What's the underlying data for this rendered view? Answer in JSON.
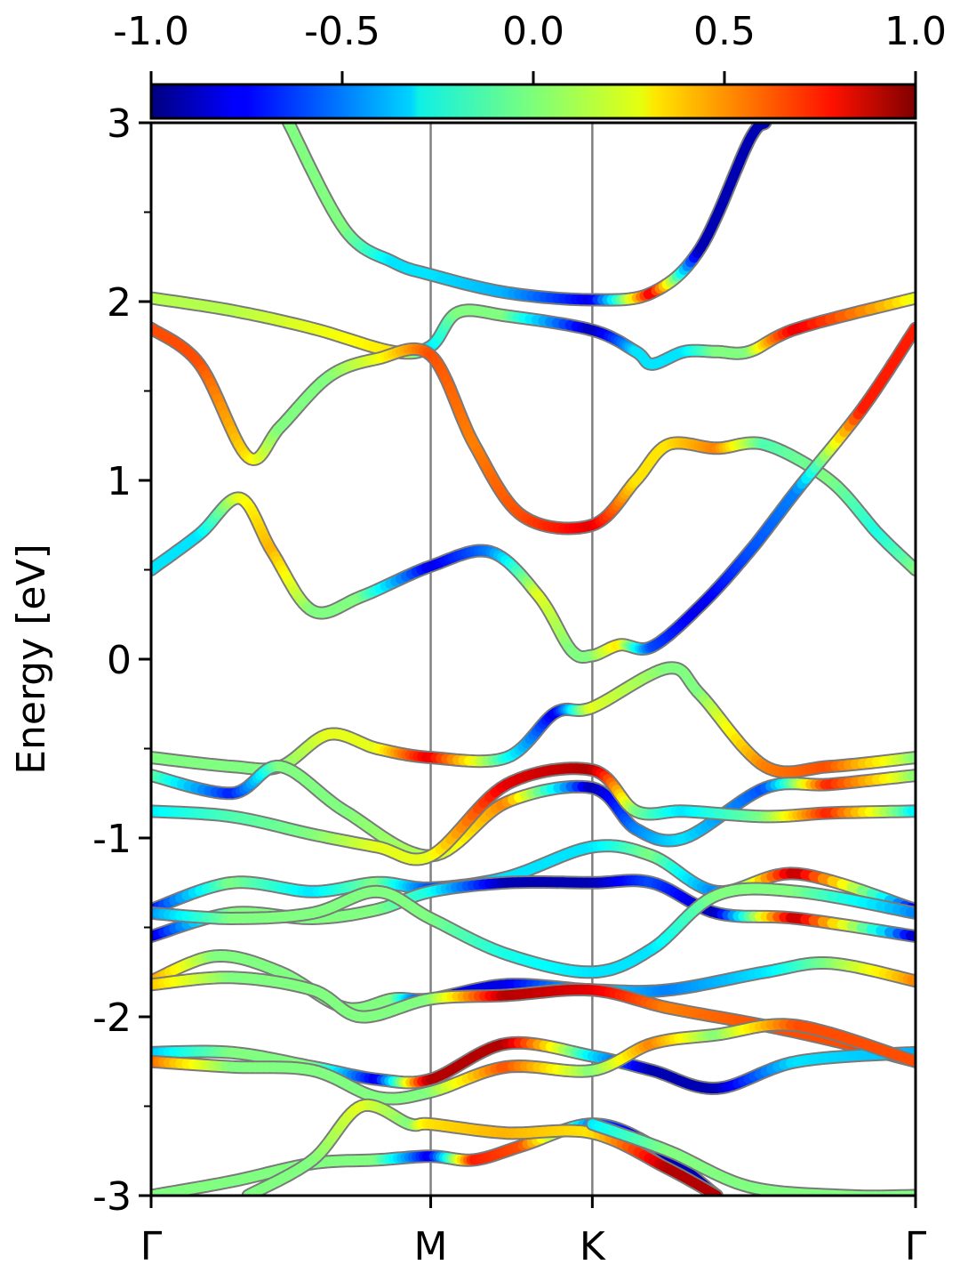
{
  "chart_data": {
    "type": "line",
    "title": "",
    "xlabel": "",
    "ylabel": "Energy [eV]",
    "ylim": [
      -3,
      3
    ],
    "xlim": [
      0,
      4.73
    ],
    "y_ticks": [
      "-3",
      "-2",
      "-1",
      "0",
      "1",
      "2",
      "3"
    ],
    "y_tick_values": [
      -3,
      -2,
      -1,
      0,
      1,
      2,
      3
    ],
    "y_minor_tick_values": [
      -2.5,
      -1.5,
      -0.5,
      0.5,
      1.5,
      2.5
    ],
    "k_points": [
      {
        "label": "Γ",
        "x": 0
      },
      {
        "label": "M",
        "x": 1.73
      },
      {
        "label": "K",
        "x": 2.73
      },
      {
        "label": "Γ",
        "x": 4.73
      }
    ],
    "colorbar": {
      "colormap": "jet",
      "range": [
        -1.0,
        1.0
      ],
      "ticks": [
        "-1.0",
        "-0.5",
        "0.0",
        "0.5",
        "1.0"
      ],
      "tick_values": [
        -1.0,
        -0.5,
        0.0,
        0.5,
        1.0
      ]
    },
    "grid": false,
    "series": [
      {
        "values": [
          [
            0.85,
            3.0
          ],
          [
            1.2,
            2.4
          ],
          [
            1.5,
            2.22
          ],
          [
            1.73,
            2.15
          ],
          [
            2.2,
            2.05
          ],
          [
            2.73,
            2.01
          ],
          [
            3.1,
            2.05
          ],
          [
            3.4,
            2.3
          ],
          [
            3.7,
            2.9
          ],
          [
            3.8,
            3.0
          ]
        ],
        "weights": [
          0.0,
          0.0,
          -0.3,
          -0.3,
          -0.4,
          -0.8,
          0.8,
          -0.9,
          -0.9,
          -0.9
        ]
      },
      {
        "values": [
          [
            0,
            2.02
          ],
          [
            0.5,
            1.95
          ],
          [
            1.0,
            1.85
          ],
          [
            1.5,
            1.72
          ],
          [
            1.73,
            1.75
          ],
          [
            1.9,
            1.94
          ],
          [
            2.2,
            1.92
          ],
          [
            2.73,
            1.84
          ],
          [
            3.0,
            1.72
          ],
          [
            3.1,
            1.65
          ],
          [
            3.3,
            1.72
          ],
          [
            3.5,
            1.72
          ],
          [
            3.7,
            1.72
          ],
          [
            4.0,
            1.85
          ],
          [
            4.73,
            2.02
          ]
        ],
        "weights": [
          0.1,
          0.1,
          0.2,
          0.3,
          -0.3,
          0.0,
          0.0,
          -0.9,
          -0.3,
          -0.3,
          -0.3,
          0.0,
          0.0,
          0.8,
          0.2
        ]
      },
      {
        "values": [
          [
            0,
            1.85
          ],
          [
            0.3,
            1.65
          ],
          [
            0.6,
            1.13
          ],
          [
            0.8,
            1.3
          ],
          [
            1.1,
            1.58
          ],
          [
            1.4,
            1.68
          ],
          [
            1.73,
            1.7
          ],
          [
            2.0,
            1.2
          ],
          [
            2.3,
            0.8
          ],
          [
            2.73,
            0.75
          ],
          [
            3.0,
            1.0
          ],
          [
            3.2,
            1.2
          ],
          [
            3.5,
            1.18
          ],
          [
            3.8,
            1.2
          ],
          [
            4.2,
            1.0
          ],
          [
            4.5,
            0.7
          ],
          [
            4.73,
            0.5
          ]
        ],
        "weights": [
          0.6,
          0.6,
          0.3,
          0.0,
          0.0,
          0.2,
          0.6,
          0.5,
          0.6,
          0.8,
          0.3,
          0.3,
          0.5,
          -0.1,
          0.0,
          -0.2,
          0.0
        ]
      },
      {
        "values": [
          [
            0,
            0.5
          ],
          [
            0.3,
            0.7
          ],
          [
            0.55,
            0.9
          ],
          [
            0.75,
            0.6
          ],
          [
            1.0,
            0.27
          ],
          [
            1.3,
            0.35
          ],
          [
            1.73,
            0.52
          ],
          [
            2.1,
            0.6
          ],
          [
            2.4,
            0.35
          ],
          [
            2.6,
            0.05
          ],
          [
            2.73,
            0.02
          ],
          [
            2.9,
            0.08
          ],
          [
            3.1,
            0.07
          ],
          [
            3.4,
            0.3
          ],
          [
            3.7,
            0.6
          ],
          [
            4.0,
            0.95
          ],
          [
            4.4,
            1.4
          ],
          [
            4.73,
            1.85
          ]
        ],
        "weights": [
          -0.3,
          -0.3,
          0.2,
          0.4,
          0.0,
          0.0,
          -0.8,
          -0.5,
          0.2,
          0.0,
          0.0,
          0.3,
          -0.6,
          -0.8,
          -0.6,
          -0.5,
          0.7,
          0.7
        ]
      },
      {
        "values": [
          [
            0,
            -0.55
          ],
          [
            0.5,
            -0.6
          ],
          [
            0.8,
            -0.6
          ],
          [
            1.1,
            -0.42
          ],
          [
            1.4,
            -0.5
          ],
          [
            1.73,
            -0.55
          ],
          [
            2.2,
            -0.55
          ],
          [
            2.5,
            -0.3
          ],
          [
            2.73,
            -0.27
          ],
          [
            3.2,
            -0.05
          ],
          [
            3.4,
            -0.2
          ],
          [
            3.8,
            -0.6
          ],
          [
            4.2,
            -0.6
          ],
          [
            4.73,
            -0.55
          ]
        ],
        "weights": [
          0.0,
          0.0,
          0.0,
          0.2,
          0.2,
          0.8,
          -0.2,
          -0.8,
          0.2,
          0.0,
          0.0,
          0.5,
          0.6,
          0.0
        ]
      },
      {
        "values": [
          [
            0,
            -0.65
          ],
          [
            0.5,
            -0.75
          ],
          [
            0.8,
            -0.6
          ],
          [
            1.2,
            -0.85
          ],
          [
            1.73,
            -1.1
          ],
          [
            2.2,
            -0.8
          ],
          [
            2.73,
            -0.72
          ],
          [
            3.0,
            -0.95
          ],
          [
            3.3,
            -1.0
          ],
          [
            3.8,
            -0.72
          ],
          [
            4.2,
            -0.7
          ],
          [
            4.73,
            -0.65
          ]
        ],
        "weights": [
          0.0,
          -0.7,
          0.0,
          0.0,
          0.1,
          0.5,
          -0.9,
          -0.5,
          -0.3,
          -0.6,
          0.7,
          0.0
        ]
      },
      {
        "values": [
          [
            0,
            -0.85
          ],
          [
            0.5,
            -0.88
          ],
          [
            1.0,
            -0.98
          ],
          [
            1.4,
            -1.05
          ],
          [
            1.73,
            -1.1
          ],
          [
            2.2,
            -0.7
          ],
          [
            2.73,
            -0.62
          ],
          [
            3.0,
            -0.85
          ],
          [
            3.3,
            -0.85
          ],
          [
            3.8,
            -0.88
          ],
          [
            4.2,
            -0.86
          ],
          [
            4.73,
            -0.85
          ]
        ],
        "weights": [
          -0.3,
          -0.1,
          0.0,
          0.2,
          0.2,
          0.8,
          0.9,
          0.0,
          -0.3,
          0.0,
          0.7,
          -0.3
        ]
      },
      {
        "values": [
          [
            0,
            -1.4
          ],
          [
            0.5,
            -1.25
          ],
          [
            1.0,
            -1.3
          ],
          [
            1.4,
            -1.25
          ],
          [
            1.73,
            -1.28
          ],
          [
            2.2,
            -1.22
          ],
          [
            2.73,
            -1.05
          ],
          [
            3.1,
            -1.1
          ],
          [
            3.5,
            -1.3
          ],
          [
            4.0,
            -1.2
          ],
          [
            4.73,
            -1.4
          ]
        ],
        "weights": [
          -0.8,
          0.0,
          -0.3,
          0.0,
          -0.6,
          -0.3,
          -0.3,
          0.0,
          -0.5,
          0.9,
          -0.8
        ]
      },
      {
        "values": [
          [
            0,
            -1.55
          ],
          [
            0.5,
            -1.42
          ],
          [
            1.0,
            -1.45
          ],
          [
            1.4,
            -1.4
          ],
          [
            1.73,
            -1.3
          ],
          [
            2.2,
            -1.25
          ],
          [
            2.73,
            -1.25
          ],
          [
            3.1,
            -1.25
          ],
          [
            3.5,
            -1.42
          ],
          [
            4.0,
            -1.45
          ],
          [
            4.73,
            -1.55
          ]
        ],
        "weights": [
          -0.9,
          0.0,
          0.0,
          0.0,
          -0.2,
          -0.9,
          -0.9,
          -0.6,
          -0.9,
          0.9,
          -0.9
        ]
      },
      {
        "values": [
          [
            0,
            -1.42
          ],
          [
            0.5,
            -1.45
          ],
          [
            1.0,
            -1.42
          ],
          [
            1.4,
            -1.3
          ],
          [
            1.73,
            -1.45
          ],
          [
            2.2,
            -1.65
          ],
          [
            2.73,
            -1.75
          ],
          [
            3.1,
            -1.62
          ],
          [
            3.5,
            -1.32
          ],
          [
            4.0,
            -1.3
          ],
          [
            4.73,
            -1.42
          ]
        ],
        "weights": [
          -0.5,
          0.0,
          0.0,
          0.0,
          0.0,
          -0.2,
          -0.3,
          -0.3,
          0.0,
          0.0,
          -0.5
        ]
      },
      {
        "values": [
          [
            0,
            -1.8
          ],
          [
            0.4,
            -1.66
          ],
          [
            0.8,
            -1.75
          ],
          [
            1.2,
            -1.95
          ],
          [
            1.5,
            -1.9
          ],
          [
            1.73,
            -1.9
          ],
          [
            2.2,
            -1.82
          ],
          [
            2.73,
            -1.85
          ],
          [
            3.2,
            -1.85
          ],
          [
            3.8,
            -1.75
          ],
          [
            4.2,
            -1.7
          ],
          [
            4.73,
            -1.8
          ]
        ],
        "weights": [
          0.5,
          0.0,
          0.0,
          0.0,
          0.0,
          -0.8,
          -0.8,
          -0.3,
          -0.5,
          -0.3,
          0.0,
          0.5
        ]
      },
      {
        "values": [
          [
            0,
            -1.82
          ],
          [
            0.5,
            -1.78
          ],
          [
            1.0,
            -1.85
          ],
          [
            1.3,
            -2.0
          ],
          [
            1.73,
            -1.9
          ],
          [
            2.2,
            -1.88
          ],
          [
            2.73,
            -1.85
          ],
          [
            3.2,
            -1.95
          ],
          [
            3.8,
            -2.05
          ],
          [
            4.3,
            -2.15
          ],
          [
            4.73,
            -2.25
          ]
        ],
        "weights": [
          0.4,
          0.0,
          0.0,
          0.0,
          0.0,
          0.9,
          0.8,
          0.5,
          0.6,
          0.6,
          0.7
        ]
      },
      {
        "values": [
          [
            0,
            -2.2
          ],
          [
            0.5,
            -2.2
          ],
          [
            1.0,
            -2.28
          ],
          [
            1.4,
            -2.35
          ],
          [
            1.73,
            -2.35
          ],
          [
            2.2,
            -2.15
          ],
          [
            2.73,
            -2.22
          ],
          [
            3.1,
            -2.3
          ],
          [
            3.5,
            -2.4
          ],
          [
            4.0,
            -2.25
          ],
          [
            4.73,
            -2.2
          ]
        ],
        "weights": [
          -0.4,
          0.0,
          0.0,
          -0.8,
          0.9,
          0.9,
          -0.3,
          -0.9,
          -0.9,
          -0.3,
          -0.4
        ]
      },
      {
        "values": [
          [
            0,
            -2.25
          ],
          [
            0.5,
            -2.28
          ],
          [
            1.0,
            -2.3
          ],
          [
            1.4,
            -2.45
          ],
          [
            1.73,
            -2.42
          ],
          [
            2.2,
            -2.28
          ],
          [
            2.73,
            -2.3
          ],
          [
            3.1,
            -2.15
          ],
          [
            3.5,
            -2.1
          ],
          [
            4.0,
            -2.05
          ],
          [
            4.73,
            -2.25
          ]
        ],
        "weights": [
          0.6,
          0.0,
          0.0,
          0.0,
          0.0,
          0.6,
          0.0,
          0.5,
          0.0,
          0.6,
          0.6
        ]
      },
      {
        "values": [
          [
            0,
            -3.0
          ],
          [
            0.5,
            -2.92
          ],
          [
            1.0,
            -2.82
          ],
          [
            1.4,
            -2.8
          ],
          [
            1.73,
            -2.78
          ],
          [
            2.0,
            -2.8
          ],
          [
            2.3,
            -2.72
          ],
          [
            2.73,
            -2.6
          ],
          [
            3.1,
            -2.72
          ],
          [
            3.5,
            -3.0
          ]
        ],
        "weights": [
          0.0,
          0.0,
          0.0,
          0.0,
          -0.8,
          0.7,
          0.6,
          -0.5,
          -0.9,
          -0.9
        ]
      },
      {
        "values": [
          [
            0.6,
            -3.0
          ],
          [
            1.0,
            -2.8
          ],
          [
            1.3,
            -2.5
          ],
          [
            1.6,
            -2.6
          ],
          [
            1.73,
            -2.6
          ],
          [
            2.2,
            -2.65
          ],
          [
            2.73,
            -2.65
          ],
          [
            3.2,
            -2.85
          ],
          [
            3.5,
            -3.0
          ]
        ],
        "weights": [
          0.0,
          0.0,
          0.2,
          0.0,
          0.3,
          0.4,
          0.3,
          0.9,
          0.9
        ]
      },
      {
        "values": [
          [
            2.73,
            -2.6
          ],
          [
            3.2,
            -2.75
          ],
          [
            3.7,
            -2.95
          ],
          [
            4.3,
            -3.0
          ],
          [
            4.73,
            -3.0
          ]
        ],
        "weights": [
          -0.3,
          0.0,
          0.0,
          0.0,
          0.0
        ]
      }
    ]
  }
}
